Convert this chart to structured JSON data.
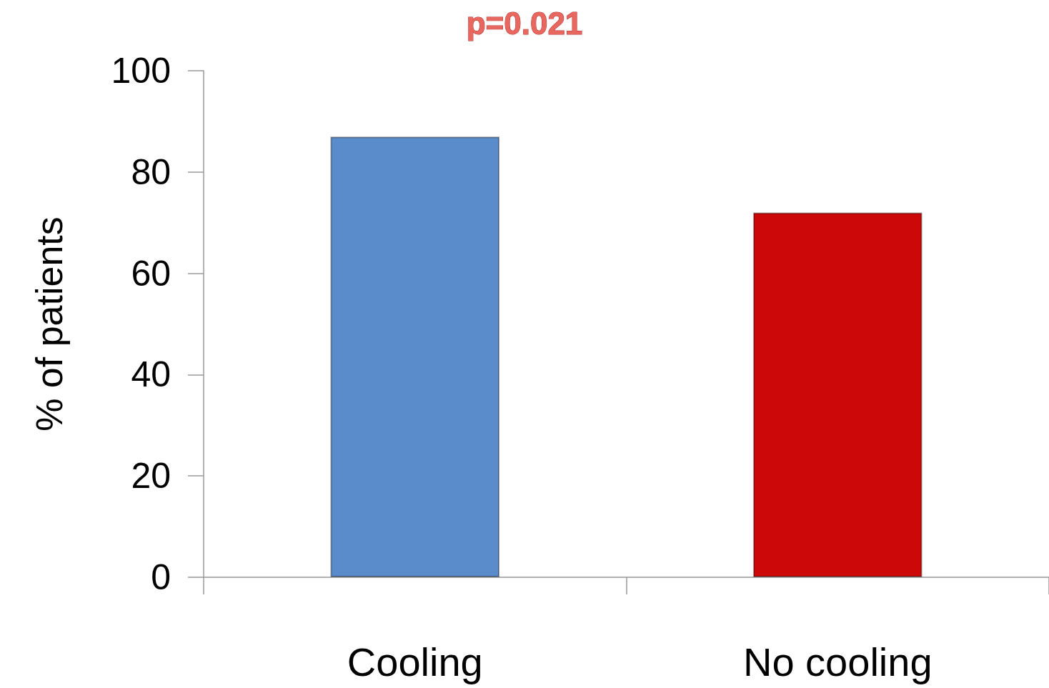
{
  "chart_data": {
    "type": "bar",
    "ylabel": "% of patients",
    "categories": [
      "Cooling",
      "No cooling"
    ],
    "values": [
      87,
      72
    ],
    "colors": [
      "#5a8ccb",
      "#cc0808"
    ],
    "ylim": [
      0,
      100
    ],
    "yticks": [
      0,
      20,
      40,
      60,
      80,
      100
    ],
    "grid": false,
    "annotations": [
      "p=0.021"
    ]
  }
}
